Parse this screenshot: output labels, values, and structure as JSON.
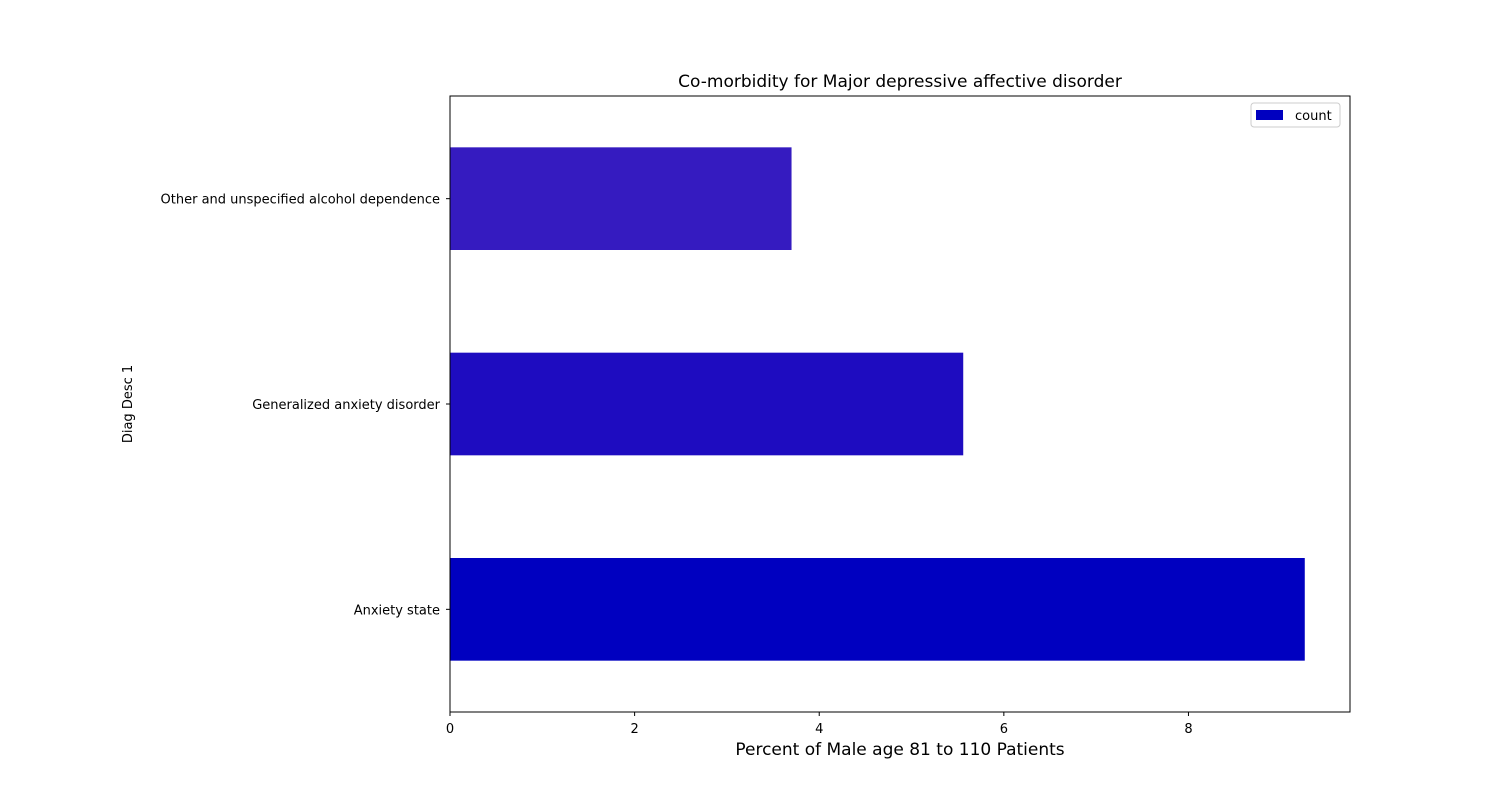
{
  "chart_data": {
    "type": "bar",
    "orientation": "horizontal",
    "title": "Co-morbidity for Major depressive affective disorder",
    "xlabel": "Percent of Male age 81 to 110 Patients",
    "ylabel": "Diag Desc 1",
    "categories": [
      "Anxiety state",
      "Generalized anxiety disorder",
      "Other and unspecified alcohol dependence"
    ],
    "series": [
      {
        "name": "count",
        "values": [
          9.26,
          5.56,
          3.7
        ],
        "colors": [
          "#0000c0",
          "#1e0cc0",
          "#351bc0"
        ]
      }
    ],
    "xlim": [
      0,
      9.75
    ],
    "xticks": [
      0,
      2,
      4,
      6,
      8
    ],
    "grid": false,
    "legend_position": "top-right",
    "legend_color": "#0000c0"
  }
}
